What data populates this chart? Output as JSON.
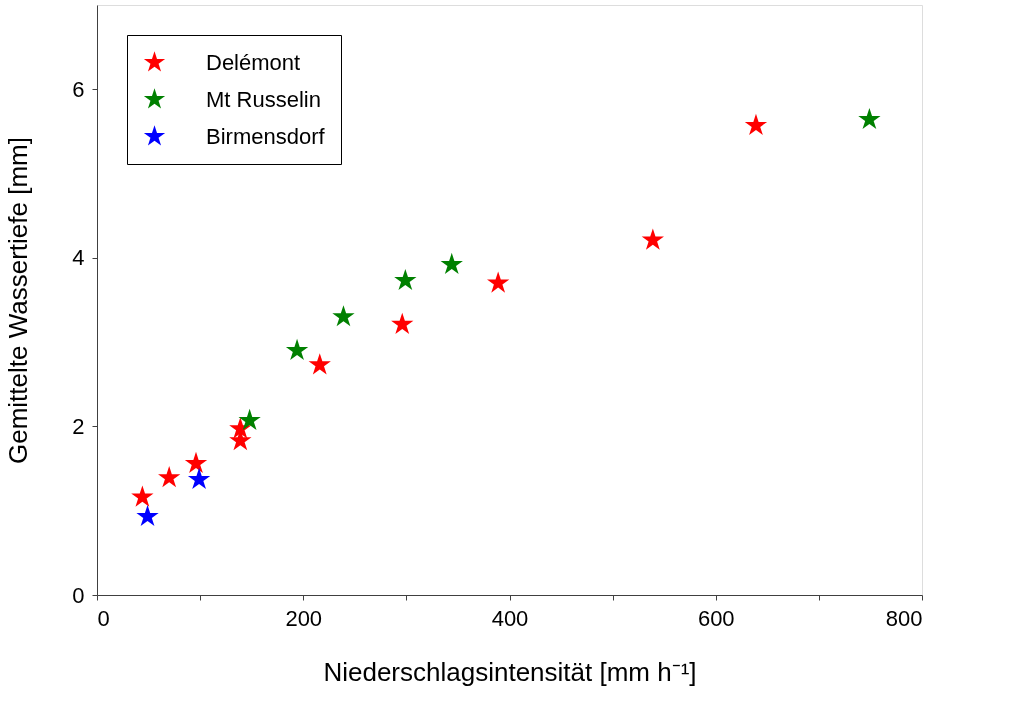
{
  "chart_data": {
    "type": "scatter",
    "xlabel": "Niederschlagsintensität [mm h⁻¹]",
    "ylabel": "Gemittelte Wassertiefe [mm]",
    "xlim": [
      0,
      800
    ],
    "ylim": [
      0,
      7
    ],
    "xticks": [
      0,
      {
        "value": 100,
        "label": null
      },
      200,
      {
        "value": 300,
        "label": null
      },
      400,
      {
        "value": 500,
        "label": null
      },
      600,
      {
        "value": 700,
        "label": null
      },
      800
    ],
    "yticks": [
      0,
      2,
      4,
      6
    ],
    "grid": false,
    "legend": "top left",
    "marker": "star",
    "series": [
      {
        "name": "Delémont",
        "color": "#ff0000",
        "x": [
          44,
          70,
          96,
          139,
          139,
          216,
          296,
          389,
          539,
          639
        ],
        "values": [
          1.16,
          1.39,
          1.56,
          1.97,
          1.83,
          2.73,
          3.21,
          3.7,
          4.21,
          5.57
        ]
      },
      {
        "name": "Mt Russelin",
        "color": "#008000",
        "x": [
          148,
          194,
          239,
          299,
          344,
          749
        ],
        "values": [
          2.07,
          2.9,
          3.3,
          3.73,
          3.92,
          5.64
        ]
      },
      {
        "name": "Birmensdorf",
        "color": "#0000ff",
        "x": [
          49,
          99
        ],
        "values": [
          0.93,
          1.37
        ]
      }
    ]
  }
}
